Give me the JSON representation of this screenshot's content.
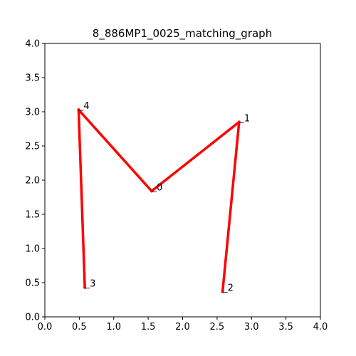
{
  "chart_data": {
    "type": "line",
    "title": "8_886MP1_0025_matching_graph",
    "xlabel": "",
    "ylabel": "",
    "xlim": [
      0.0,
      4.0
    ],
    "ylim": [
      0.0,
      4.0
    ],
    "x_ticks": [
      "0.0",
      "0.5",
      "1.0",
      "1.5",
      "2.0",
      "2.5",
      "3.0",
      "3.5",
      "4.0"
    ],
    "y_ticks": [
      "0.0",
      "0.5",
      "1.0",
      "1.5",
      "2.0",
      "2.5",
      "3.0",
      "3.5",
      "4.0"
    ],
    "grid": false,
    "edge_color": "#ff0000",
    "nodes": [
      {
        "label": "0",
        "x": 1.55,
        "y": 1.84
      },
      {
        "label": "1",
        "x": 2.82,
        "y": 2.85
      },
      {
        "label": "2",
        "x": 2.58,
        "y": 0.37
      },
      {
        "label": "3",
        "x": 0.58,
        "y": 0.43
      },
      {
        "label": "4",
        "x": 0.49,
        "y": 3.03
      }
    ],
    "edges": [
      [
        "0",
        "1"
      ],
      [
        "1",
        "2"
      ],
      [
        "0",
        "4"
      ],
      [
        "4",
        "3"
      ]
    ]
  }
}
